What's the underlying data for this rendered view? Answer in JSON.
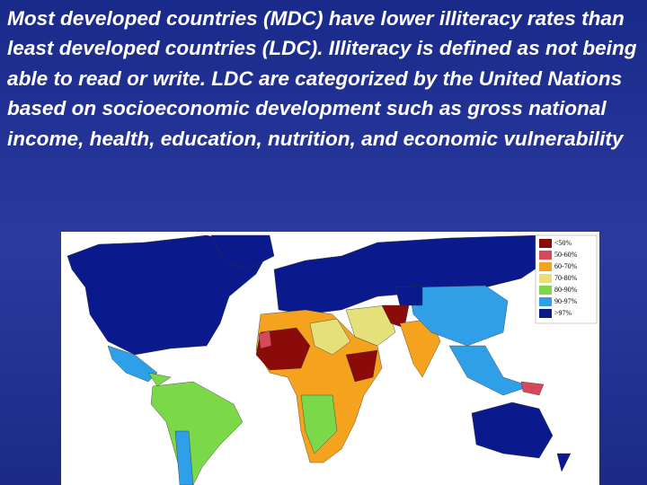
{
  "slide": {
    "text": "Most developed countries (MDC) have lower illiteracy rates than least developed countries (LDC). Illiteracy is defined as not being able to read or write. LDC are categorized by the United Nations based on socioeconomic development such as gross national income, health, education, nutrition, and economic vulnerability",
    "map": {
      "legend": [
        {
          "label": "<50%",
          "color": "#8b0a0a"
        },
        {
          "label": "50-60%",
          "color": "#d9475a"
        },
        {
          "label": "60-70%",
          "color": "#f5a21e"
        },
        {
          "label": "70-80%",
          "color": "#e6e07a"
        },
        {
          "label": "80-90%",
          "color": "#7bd848"
        },
        {
          "label": "90-97%",
          "color": "#2f9fe8"
        },
        {
          "label": ">97%",
          "color": "#0a1a8c"
        }
      ]
    }
  }
}
